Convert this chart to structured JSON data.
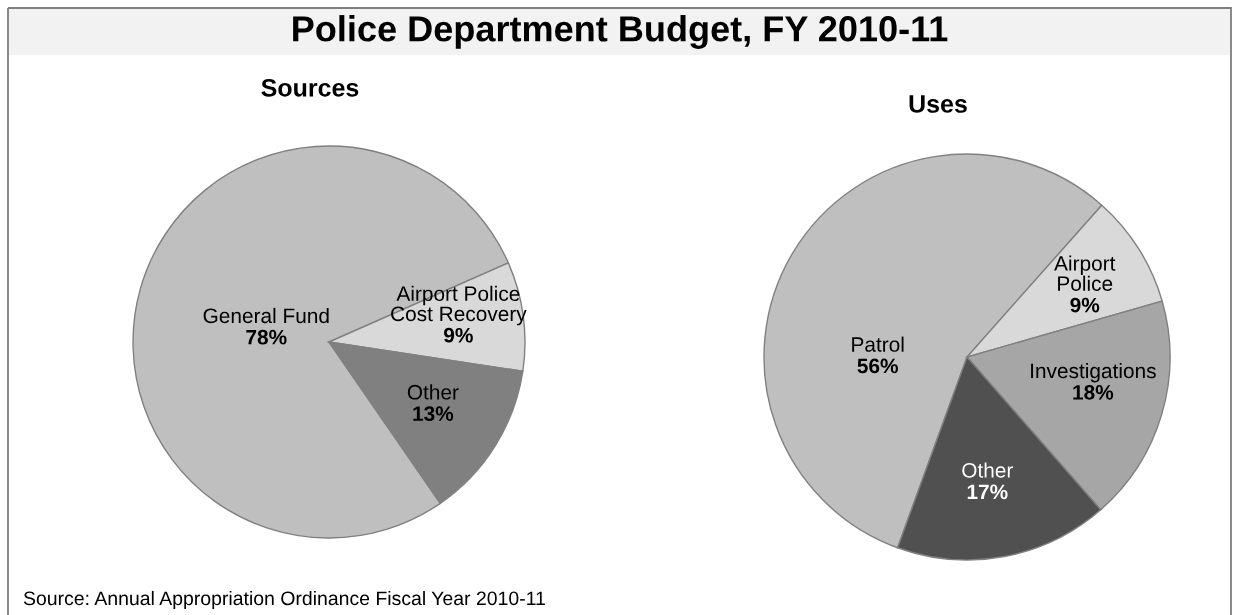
{
  "chart_data": [
    {
      "type": "other",
      "title": "Police Department Budget, FY 2010-11",
      "annotations": [
        "Source: Annual Appropriation Ordinance Fiscal Year 2010-11"
      ]
    },
    {
      "type": "pie",
      "title": "Sources",
      "categories": [
        "General Fund",
        "Airport Police\nCost Recovery",
        "Other"
      ],
      "values": [
        78,
        9,
        13
      ],
      "colors": [
        "#bfbfbf",
        "#d9d9d9",
        "#808080"
      ],
      "value_labels": [
        "78%",
        "9%",
        "13%"
      ]
    },
    {
      "type": "pie",
      "title": "Uses",
      "categories": [
        "Patrol",
        "Airport\nPolice",
        "Investigations",
        "Other"
      ],
      "values": [
        56,
        9,
        18,
        17
      ],
      "colors": [
        "#bfbfbf",
        "#d9d9d9",
        "#a6a6a6",
        "#505050"
      ],
      "value_labels": [
        "56%",
        "9%",
        "18%",
        "17%"
      ]
    }
  ]
}
